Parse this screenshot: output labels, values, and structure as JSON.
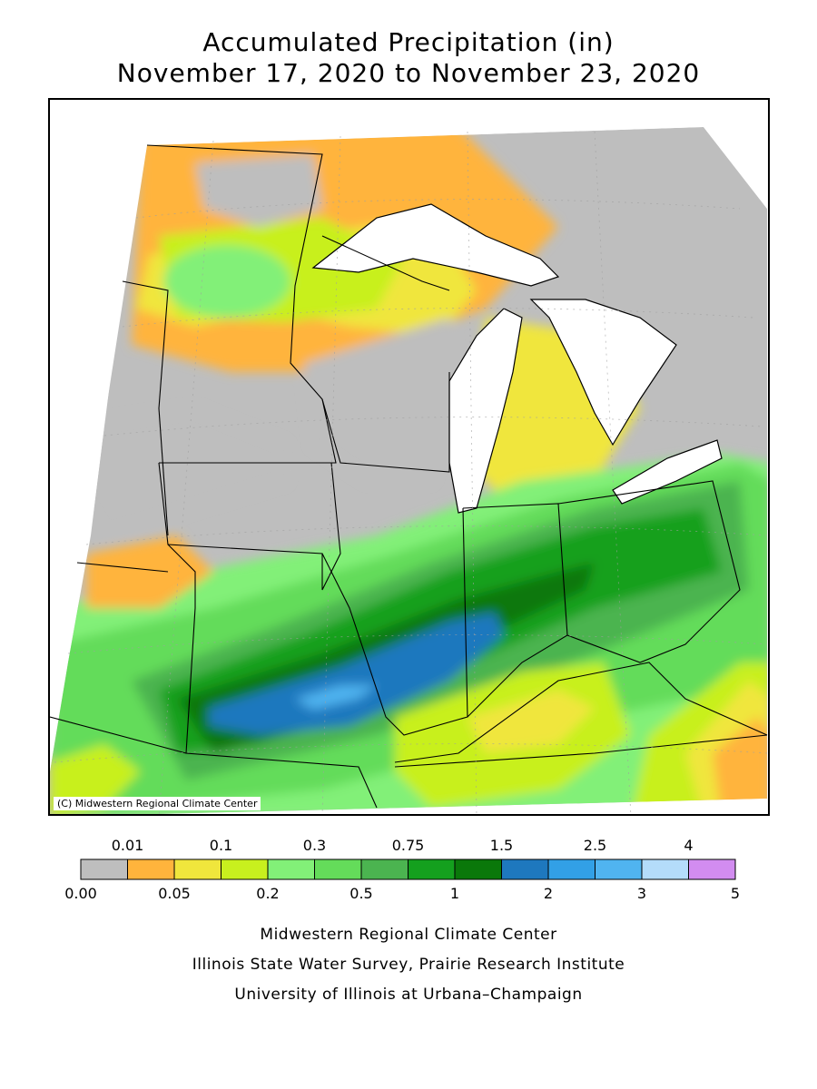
{
  "title": {
    "line1": "Accumulated Precipitation (in)",
    "line2": "November 17, 2020 to November 23, 2020"
  },
  "map": {
    "copyright": "(C) Midwestern Regional Climate Center",
    "region": "Midwest United States",
    "water_color": "#ffffff",
    "outline_color": "#000000"
  },
  "legend": {
    "top_labels": [
      "0.01",
      "0.1",
      "0.3",
      "0.75",
      "1.5",
      "2.5",
      "4"
    ],
    "bottom_labels": [
      "0.00",
      "0.05",
      "0.2",
      "0.5",
      "1",
      "2",
      "3",
      "5"
    ],
    "colors": [
      "#bebebe",
      "#ffb43c",
      "#f0e63c",
      "#c8f01e",
      "#82f078",
      "#64dc5a",
      "#4bb450",
      "#14a01e",
      "#0a780a",
      "#1e78be",
      "#32a0e6",
      "#50b4f0",
      "#b4dcfa",
      "#d28cf0"
    ]
  },
  "footer": {
    "line1": "Midwestern Regional Climate Center",
    "line2": "Illinois State Water Survey, Prairie Research Institute",
    "line3": "University of Illinois at Urbana–Champaign"
  }
}
